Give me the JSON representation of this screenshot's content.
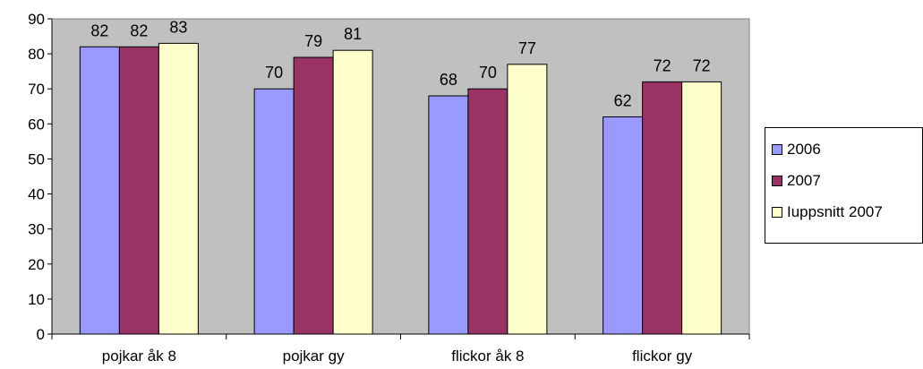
{
  "chart_data": {
    "type": "bar",
    "categories": [
      "pojkar åk 8",
      "pojkar gy",
      "flickor åk 8",
      "flickor gy"
    ],
    "series": [
      {
        "name": "2006",
        "values": [
          82,
          70,
          68,
          62
        ],
        "color": "#9999FF"
      },
      {
        "name": "2007",
        "values": [
          82,
          79,
          70,
          72
        ],
        "color": "#993366"
      },
      {
        "name": "Iuppsnitt 2007",
        "values": [
          83,
          81,
          77,
          72
        ],
        "color": "#FFFFCC"
      }
    ],
    "ylim": [
      0,
      90
    ],
    "yticks": [
      "0",
      "10",
      "20",
      "30",
      "40",
      "50",
      "60",
      "70",
      "80",
      "90"
    ],
    "plot_background": "#C0C0C0",
    "legend_position": "right",
    "grid": false,
    "data_labels": true
  }
}
